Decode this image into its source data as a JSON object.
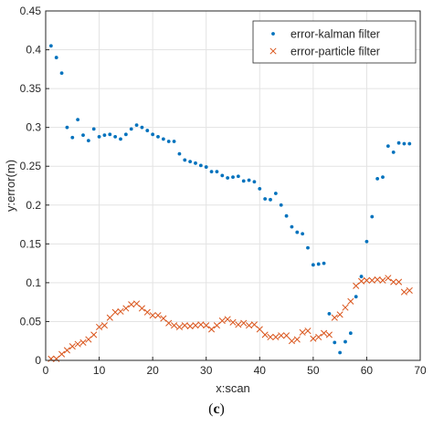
{
  "chart_data": {
    "type": "scatter",
    "xlabel": "x:scan",
    "ylabel": "y:error(m)",
    "xlim": [
      0,
      70
    ],
    "ylim": [
      0,
      0.45
    ],
    "xticks": [
      0,
      10,
      20,
      30,
      40,
      50,
      60,
      70
    ],
    "yticks": [
      0,
      0.05,
      0.1,
      0.15,
      0.2,
      0.25,
      0.3,
      0.35,
      0.4,
      0.45
    ],
    "xtick_labels": [
      "0",
      "10",
      "20",
      "30",
      "40",
      "50",
      "60",
      "70"
    ],
    "ytick_labels": [
      "0",
      "0.05",
      "0.1",
      "0.15",
      "0.2",
      "0.25",
      "0.3",
      "0.35",
      "0.4",
      "0.45"
    ],
    "grid": true,
    "legend_position": "top-right",
    "series": [
      {
        "name": "error-kalman filter",
        "marker": "dot",
        "color": "#0072BD",
        "x": [
          1,
          2,
          3,
          4,
          5,
          6,
          7,
          8,
          9,
          10,
          11,
          12,
          13,
          14,
          15,
          16,
          17,
          18,
          19,
          20,
          21,
          22,
          23,
          24,
          25,
          26,
          27,
          28,
          29,
          30,
          31,
          32,
          33,
          34,
          35,
          36,
          37,
          38,
          39,
          40,
          41,
          42,
          43,
          44,
          45,
          46,
          47,
          48,
          49,
          50,
          51,
          52,
          53,
          54,
          55,
          56,
          57,
          58,
          59,
          60,
          61,
          62,
          63,
          64,
          65,
          66,
          67,
          68
        ],
        "y": [
          0.405,
          0.39,
          0.37,
          0.3,
          0.287,
          0.31,
          0.29,
          0.283,
          0.298,
          0.288,
          0.29,
          0.291,
          0.288,
          0.285,
          0.291,
          0.298,
          0.303,
          0.3,
          0.296,
          0.291,
          0.288,
          0.285,
          0.282,
          0.282,
          0.266,
          0.258,
          0.256,
          0.254,
          0.251,
          0.249,
          0.243,
          0.243,
          0.238,
          0.235,
          0.236,
          0.237,
          0.231,
          0.232,
          0.23,
          0.221,
          0.208,
          0.207,
          0.215,
          0.2,
          0.186,
          0.172,
          0.165,
          0.163,
          0.145,
          0.123,
          0.124,
          0.125,
          0.06,
          0.023,
          0.01,
          0.024,
          0.035,
          0.082,
          0.108,
          0.153,
          0.185,
          0.234,
          0.236,
          0.276,
          0.268,
          0.28,
          0.279,
          0.279
        ]
      },
      {
        "name": "error-particle filter",
        "marker": "x",
        "color": "#D95319",
        "x": [
          1,
          2,
          3,
          4,
          5,
          6,
          7,
          8,
          9,
          10,
          11,
          12,
          13,
          14,
          15,
          16,
          17,
          18,
          19,
          20,
          21,
          22,
          23,
          24,
          25,
          26,
          27,
          28,
          29,
          30,
          31,
          32,
          33,
          34,
          35,
          36,
          37,
          38,
          39,
          40,
          41,
          42,
          43,
          44,
          45,
          46,
          47,
          48,
          49,
          50,
          51,
          52,
          53,
          54,
          55,
          56,
          57,
          58,
          59,
          60,
          61,
          62,
          63,
          64,
          65,
          66,
          67,
          68
        ],
        "y": [
          0.002,
          0.002,
          0.008,
          0.013,
          0.018,
          0.021,
          0.023,
          0.027,
          0.033,
          0.043,
          0.045,
          0.055,
          0.062,
          0.063,
          0.067,
          0.072,
          0.073,
          0.067,
          0.062,
          0.058,
          0.058,
          0.054,
          0.048,
          0.045,
          0.043,
          0.045,
          0.044,
          0.045,
          0.046,
          0.045,
          0.04,
          0.045,
          0.051,
          0.053,
          0.049,
          0.046,
          0.048,
          0.045,
          0.046,
          0.04,
          0.033,
          0.03,
          0.03,
          0.032,
          0.032,
          0.025,
          0.027,
          0.036,
          0.038,
          0.028,
          0.03,
          0.035,
          0.033,
          0.055,
          0.059,
          0.068,
          0.076,
          0.096,
          0.102,
          0.103,
          0.103,
          0.104,
          0.103,
          0.106,
          0.101,
          0.101,
          0.088,
          0.09
        ]
      }
    ]
  },
  "caption": {
    "open": "(",
    "letter": "c",
    "close": ")"
  }
}
